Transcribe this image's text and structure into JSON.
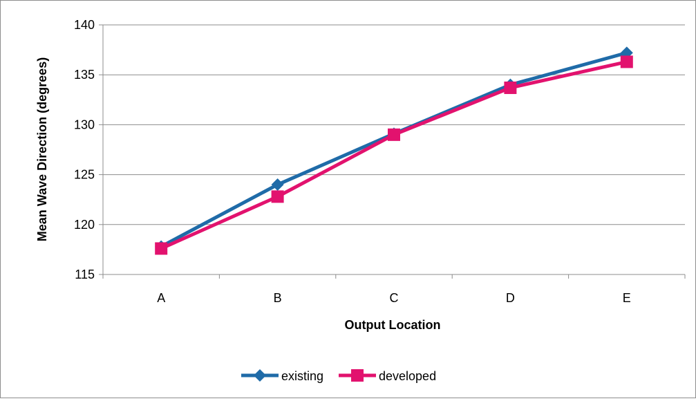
{
  "chart_data": {
    "type": "line",
    "title": "",
    "xlabel": "Output Location",
    "ylabel": "Mean Wave Direction (degrees)",
    "categories": [
      "A",
      "B",
      "C",
      "D",
      "E"
    ],
    "ylim": [
      115,
      140
    ],
    "yticks": [
      115,
      120,
      125,
      130,
      135,
      140
    ],
    "grid": true,
    "legend_position": "bottom",
    "series": [
      {
        "name": "existing",
        "color": "#1F6BA8",
        "marker": "diamond",
        "values": [
          117.8,
          124.0,
          129.1,
          134.0,
          137.2
        ]
      },
      {
        "name": "developed",
        "color": "#E2126E",
        "marker": "square",
        "values": [
          117.6,
          122.8,
          129.0,
          133.7,
          136.3
        ]
      }
    ]
  }
}
